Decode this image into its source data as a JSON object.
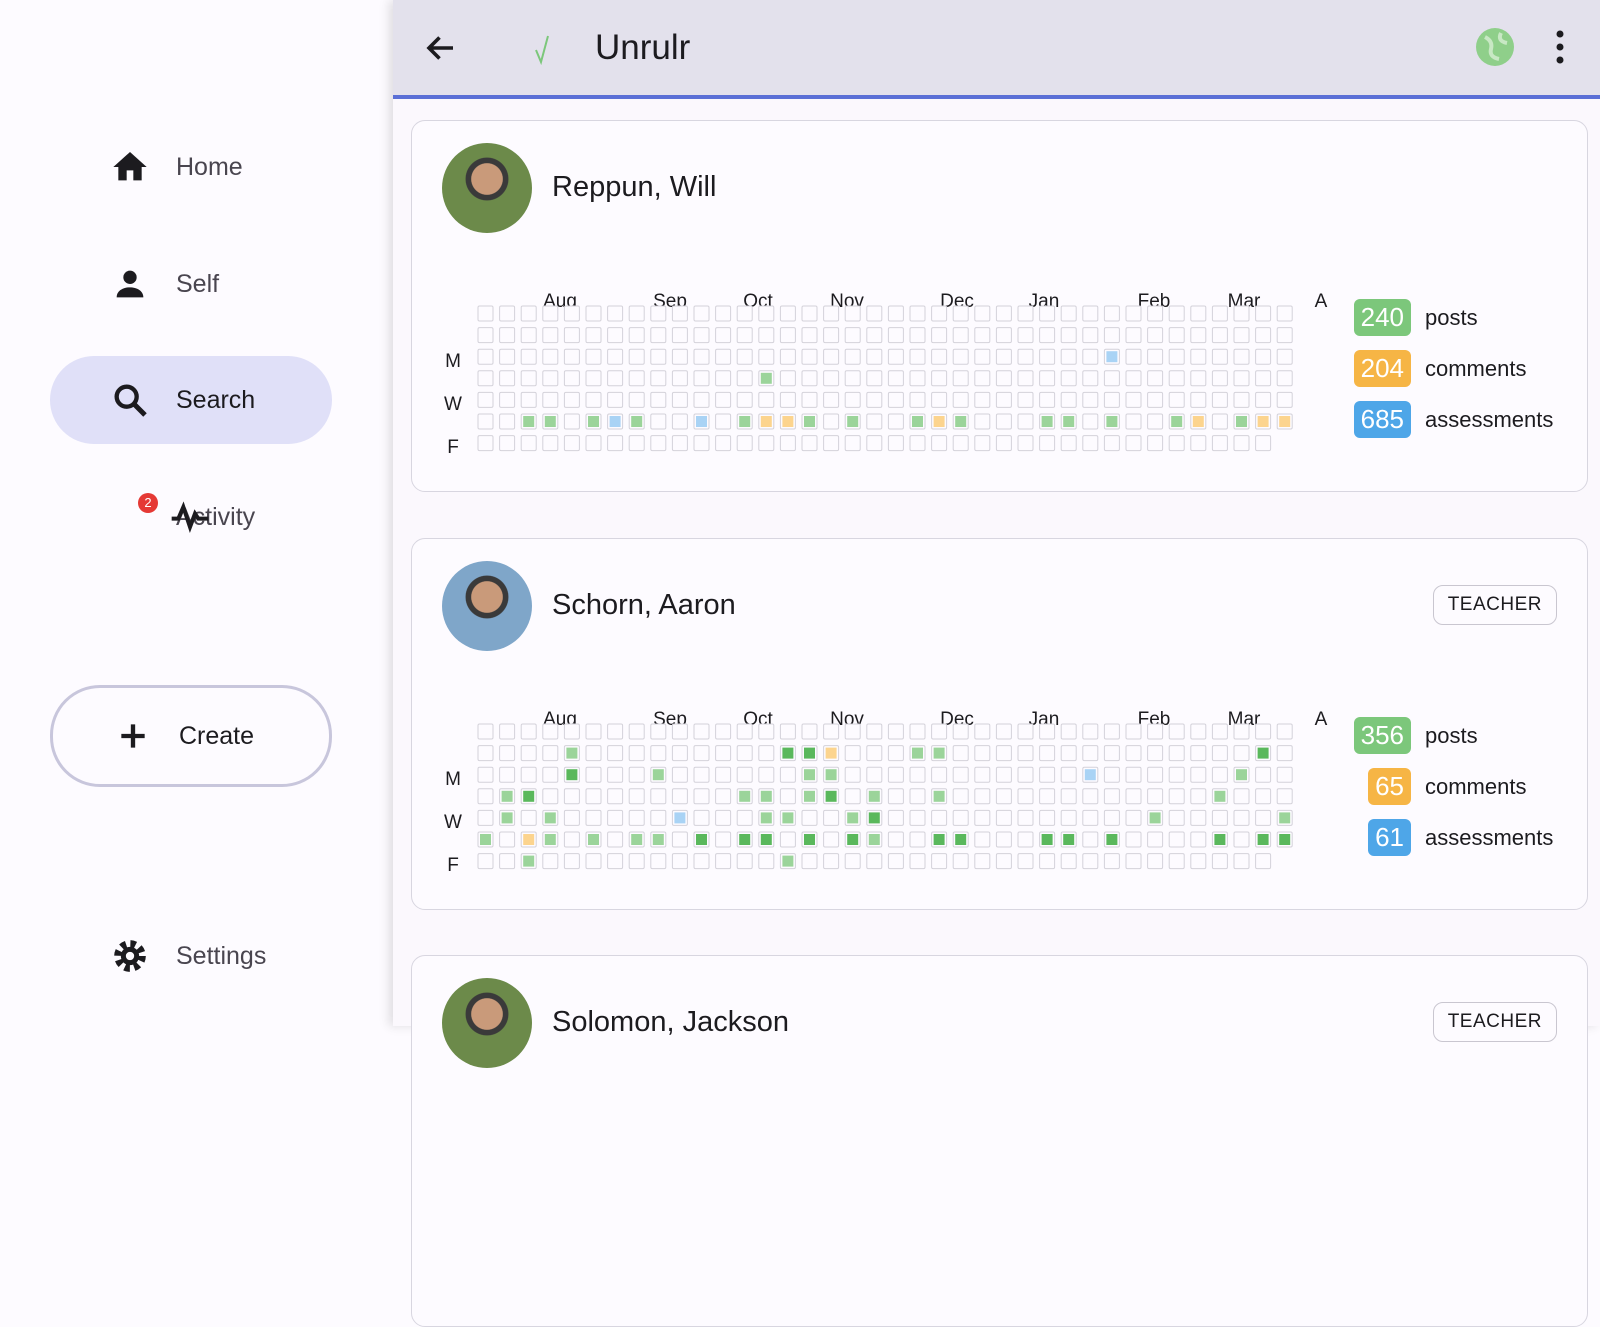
{
  "nav": {
    "items": [
      {
        "label": "Home"
      },
      {
        "label": "Self"
      },
      {
        "label": "Search"
      },
      {
        "label": "Activity",
        "badge": 2
      }
    ],
    "create": "Create",
    "settings": "Settings"
  },
  "header": {
    "title": "Unrulr"
  },
  "heatmap_months": [
    "Aug",
    "Sep",
    "Oct",
    "Nov",
    "Dec",
    "Jan",
    "Feb",
    "Mar",
    "A"
  ],
  "heatmap_days": [
    "M",
    "W",
    "F"
  ],
  "people": [
    {
      "name": "Reppun, Will",
      "stats": [
        {
          "count": 240,
          "label": "posts",
          "color": "#7cc77b"
        },
        {
          "count": 204,
          "label": "comments",
          "color": "#f6b545"
        },
        {
          "count": 685,
          "label": "assessments",
          "color": "#4ea6e8"
        }
      ],
      "cells": [
        [
          2,
          29,
          "b"
        ],
        [
          3,
          13,
          "g"
        ],
        [
          5,
          2,
          "g"
        ],
        [
          5,
          3,
          "g"
        ],
        [
          5,
          5,
          "g"
        ],
        [
          5,
          6,
          "b"
        ],
        [
          5,
          7,
          "g"
        ],
        [
          5,
          10,
          "b"
        ],
        [
          5,
          12,
          "g"
        ],
        [
          5,
          13,
          "y"
        ],
        [
          5,
          14,
          "y"
        ],
        [
          5,
          15,
          "g"
        ],
        [
          5,
          17,
          "g"
        ],
        [
          5,
          20,
          "g"
        ],
        [
          5,
          21,
          "y"
        ],
        [
          5,
          22,
          "g"
        ],
        [
          5,
          26,
          "g"
        ],
        [
          5,
          27,
          "g"
        ],
        [
          5,
          29,
          "g"
        ],
        [
          5,
          32,
          "g"
        ],
        [
          5,
          33,
          "y"
        ],
        [
          5,
          35,
          "g"
        ],
        [
          5,
          36,
          "y"
        ],
        [
          5,
          37,
          "y"
        ]
      ]
    },
    {
      "name": "Schorn, Aaron",
      "role": "TEACHER",
      "stats": [
        {
          "count": 356,
          "label": "posts",
          "color": "#7cc77b"
        },
        {
          "count": 65,
          "label": "comments",
          "color": "#f6b545"
        },
        {
          "count": 61,
          "label": "assessments",
          "color": "#4ea6e8"
        }
      ],
      "cells": [
        [
          1,
          4,
          "g"
        ],
        [
          1,
          14,
          "d"
        ],
        [
          1,
          15,
          "d"
        ],
        [
          1,
          16,
          "y"
        ],
        [
          1,
          20,
          "g"
        ],
        [
          1,
          21,
          "g"
        ],
        [
          1,
          36,
          "d"
        ],
        [
          2,
          4,
          "d"
        ],
        [
          2,
          8,
          "g"
        ],
        [
          2,
          15,
          "g"
        ],
        [
          2,
          16,
          "g"
        ],
        [
          2,
          28,
          "b"
        ],
        [
          2,
          35,
          "g"
        ],
        [
          3,
          1,
          "g"
        ],
        [
          3,
          2,
          "d"
        ],
        [
          3,
          12,
          "g"
        ],
        [
          3,
          13,
          "g"
        ],
        [
          3,
          15,
          "g"
        ],
        [
          3,
          16,
          "d"
        ],
        [
          3,
          18,
          "g"
        ],
        [
          3,
          21,
          "g"
        ],
        [
          3,
          34,
          "g"
        ],
        [
          4,
          1,
          "g"
        ],
        [
          4,
          3,
          "g"
        ],
        [
          4,
          9,
          "b"
        ],
        [
          4,
          13,
          "g"
        ],
        [
          4,
          14,
          "g"
        ],
        [
          4,
          17,
          "g"
        ],
        [
          4,
          18,
          "d"
        ],
        [
          4,
          31,
          "g"
        ],
        [
          4,
          37,
          "g"
        ],
        [
          5,
          0,
          "g"
        ],
        [
          5,
          2,
          "y"
        ],
        [
          5,
          3,
          "g"
        ],
        [
          5,
          5,
          "g"
        ],
        [
          5,
          7,
          "g"
        ],
        [
          5,
          8,
          "g"
        ],
        [
          5,
          10,
          "d"
        ],
        [
          5,
          12,
          "d"
        ],
        [
          5,
          13,
          "d"
        ],
        [
          5,
          15,
          "d"
        ],
        [
          5,
          17,
          "d"
        ],
        [
          5,
          18,
          "g"
        ],
        [
          5,
          21,
          "d"
        ],
        [
          5,
          22,
          "d"
        ],
        [
          5,
          26,
          "d"
        ],
        [
          5,
          27,
          "d"
        ],
        [
          5,
          29,
          "d"
        ],
        [
          5,
          34,
          "d"
        ],
        [
          5,
          36,
          "d"
        ],
        [
          5,
          37,
          "d"
        ],
        [
          6,
          2,
          "g"
        ],
        [
          6,
          14,
          "g"
        ]
      ]
    },
    {
      "name": "Solomon, Jackson",
      "role": "TEACHER"
    }
  ]
}
